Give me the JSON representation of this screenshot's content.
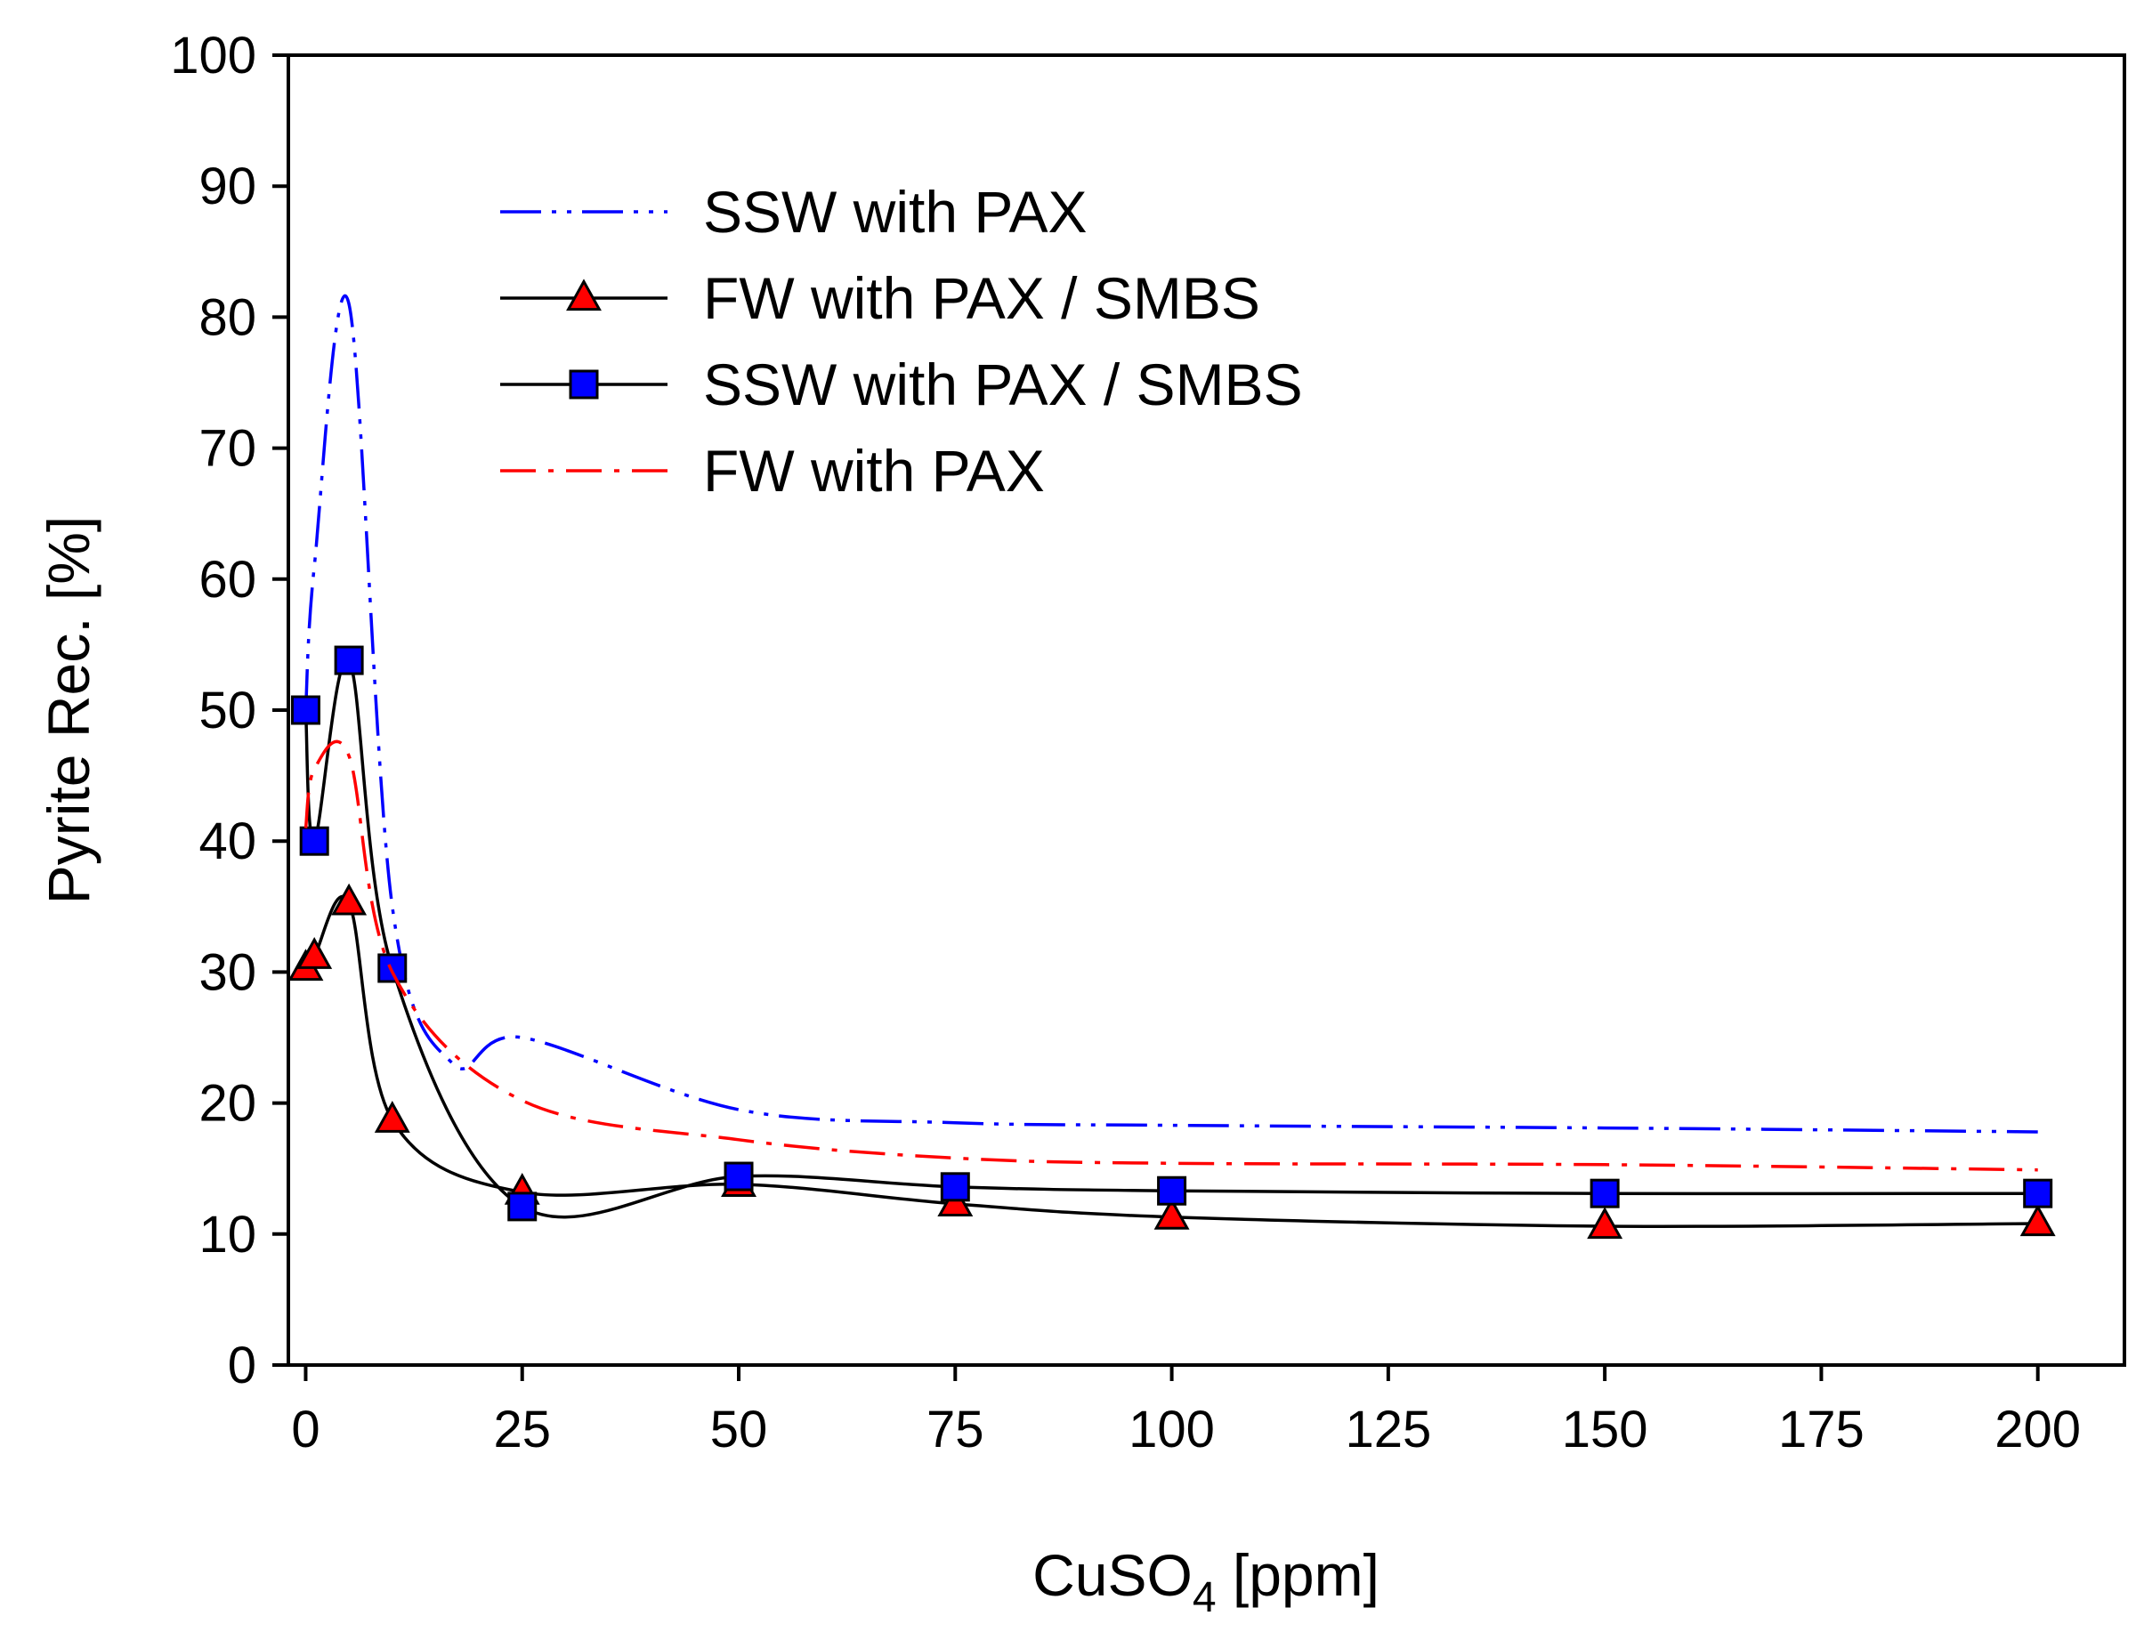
{
  "chart_data": {
    "type": "line",
    "title": "",
    "xlabel": "CuSO",
    "xlabel_sub": "4",
    "xlabel_unit": " [ppm]",
    "ylabel": "Pyrite Rec. [%]",
    "xlim": [
      -2,
      210
    ],
    "ylim": [
      0,
      100
    ],
    "xticks": [
      0,
      25,
      50,
      75,
      100,
      125,
      150,
      175,
      200
    ],
    "yticks": [
      0,
      10,
      20,
      30,
      40,
      50,
      60,
      70,
      80,
      90,
      100
    ],
    "grid": false,
    "legend_position": "top-center",
    "series": [
      {
        "name": "SSW with PAX",
        "color": "#0000ff",
        "line": "dash-dot-dot",
        "marker": "none",
        "x": [
          0,
          1,
          5,
          10,
          17,
          25,
          50,
          75,
          100,
          150,
          200
        ],
        "y": [
          50,
          61,
          81,
          35,
          23,
          25,
          19.5,
          18.5,
          18.3,
          18.1,
          17.8
        ]
      },
      {
        "name": "FW with PAX / SMBS",
        "color": "#000000",
        "marker_color": "#ff0000",
        "line": "solid",
        "marker": "triangle",
        "x": [
          0,
          1,
          5,
          10,
          25,
          50,
          75,
          100,
          150,
          200
        ],
        "y": [
          30.3,
          31.2,
          35.3,
          18.7,
          13.2,
          13.8,
          12.3,
          11.3,
          10.6,
          10.8
        ]
      },
      {
        "name": "SSW with PAX / SMBS",
        "color": "#000000",
        "marker_color": "#0000ff",
        "line": "solid",
        "marker": "square",
        "x": [
          0,
          1,
          5,
          10,
          25,
          50,
          75,
          100,
          150,
          200
        ],
        "y": [
          50,
          40,
          53.8,
          30.3,
          12.1,
          14.4,
          13.6,
          13.3,
          13.1,
          13.1
        ]
      },
      {
        "name": "FW with PAX",
        "color": "#ff0000",
        "line": "dash-dot",
        "marker": "none",
        "x": [
          0,
          1,
          5,
          10,
          25,
          50,
          75,
          100,
          150,
          200
        ],
        "y": [
          41,
          45.5,
          46.5,
          30,
          20.2,
          17.2,
          15.8,
          15.4,
          15.3,
          14.9
        ]
      }
    ]
  }
}
